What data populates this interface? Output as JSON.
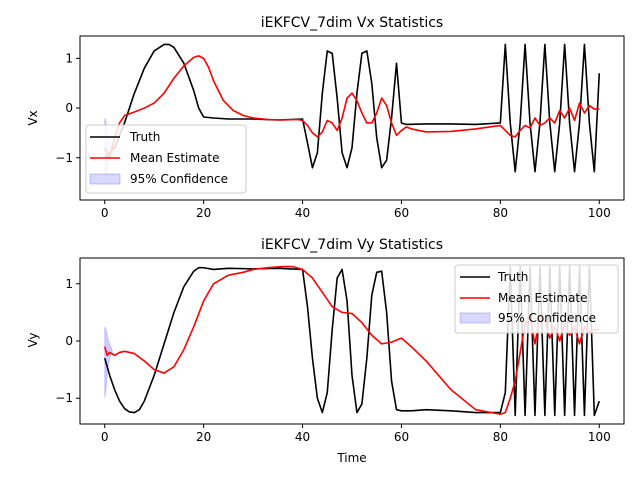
{
  "chart_data": [
    {
      "type": "line",
      "title": "iEKFCV_7dim Vx Statistics",
      "xlabel": "",
      "ylabel": "Vx",
      "xlim": [
        -5,
        105
      ],
      "ylim": [
        -1.85,
        1.45
      ],
      "xticks": [
        0,
        20,
        40,
        60,
        80,
        100
      ],
      "yticks": [
        -1,
        0,
        1
      ],
      "grid": false,
      "legend_position": "lower-left",
      "legend": [
        "Truth",
        "Mean Estimate",
        "95% Confidence"
      ],
      "colors": {
        "truth": "#000000",
        "estimate": "#ff0000",
        "confidence": "#0000ff"
      },
      "series": [
        {
          "name": "Truth",
          "x": [
            0,
            2,
            4,
            6,
            8,
            10,
            12,
            13,
            14,
            16,
            18,
            19,
            20,
            22,
            25,
            30,
            35,
            40,
            41,
            42,
            43,
            44,
            45,
            46,
            47,
            48,
            49,
            50,
            51,
            52,
            53,
            54,
            55,
            56,
            57,
            58,
            59,
            60,
            61,
            65,
            70,
            75,
            80,
            81,
            82,
            83,
            84,
            85,
            86,
            87,
            88,
            89,
            90,
            91,
            92,
            93,
            94,
            95,
            96,
            97,
            98,
            99,
            100
          ],
          "y": [
            -1.0,
            -0.8,
            -0.3,
            0.3,
            0.8,
            1.15,
            1.28,
            1.28,
            1.22,
            0.9,
            0.35,
            0.0,
            -0.18,
            -0.2,
            -0.22,
            -0.22,
            -0.24,
            -0.22,
            -0.7,
            -1.2,
            -0.9,
            0.3,
            1.15,
            1.1,
            0.2,
            -0.9,
            -1.2,
            -0.8,
            0.3,
            1.1,
            1.15,
            0.5,
            -0.6,
            -1.2,
            -1.05,
            -0.2,
            0.9,
            -0.3,
            -0.33,
            -0.32,
            -0.32,
            -0.33,
            -0.3,
            1.28,
            -0.3,
            -1.28,
            -0.3,
            1.28,
            -0.3,
            -1.28,
            -0.3,
            1.28,
            -0.3,
            -1.28,
            -0.3,
            1.28,
            -0.3,
            -1.28,
            -0.3,
            1.28,
            -0.3,
            -1.28,
            0.7
          ]
        },
        {
          "name": "Mean Estimate",
          "x": [
            0,
            1,
            2,
            3,
            4,
            6,
            8,
            10,
            12,
            14,
            16,
            18,
            19,
            20,
            21,
            22,
            24,
            26,
            28,
            30,
            33,
            36,
            39,
            40,
            41,
            42,
            43,
            44,
            45,
            46,
            47,
            48,
            49,
            50,
            51,
            52,
            53,
            54,
            55,
            56,
            57,
            58,
            59,
            60,
            61,
            62,
            65,
            70,
            75,
            80,
            81,
            82,
            83,
            84,
            85,
            86,
            87,
            88,
            89,
            90,
            91,
            92,
            93,
            94,
            95,
            96,
            97,
            98,
            99,
            100
          ],
          "y": [
            -0.8,
            -1.0,
            -0.6,
            -0.3,
            -0.15,
            -0.08,
            0.0,
            0.1,
            0.3,
            0.6,
            0.85,
            1.02,
            1.05,
            1.0,
            0.82,
            0.55,
            0.15,
            -0.05,
            -0.15,
            -0.2,
            -0.23,
            -0.24,
            -0.23,
            -0.25,
            -0.35,
            -0.5,
            -0.58,
            -0.48,
            -0.25,
            -0.3,
            -0.45,
            -0.2,
            0.2,
            0.3,
            0.15,
            -0.1,
            -0.3,
            -0.3,
            -0.1,
            0.2,
            0.05,
            -0.3,
            -0.55,
            -0.45,
            -0.38,
            -0.42,
            -0.48,
            -0.47,
            -0.42,
            -0.35,
            -0.45,
            -0.55,
            -0.58,
            -0.45,
            -0.35,
            -0.4,
            -0.2,
            -0.35,
            -0.3,
            -0.2,
            -0.3,
            -0.05,
            -0.2,
            0.0,
            -0.25,
            0.1,
            -0.1,
            0.05,
            -0.02,
            -0.02
          ]
        }
      ],
      "confidence": {
        "name": "95% Confidence",
        "x": [
          0,
          0.3,
          0.6,
          1.0,
          1.5
        ],
        "lower": [
          -1.3,
          -1.4,
          -1.2,
          -1.0,
          -0.8
        ],
        "upper": [
          -0.2,
          -0.3,
          -0.5,
          -0.7,
          -0.8
        ]
      }
    },
    {
      "type": "line",
      "title": "iEKFCV_7dim Vy Statistics",
      "xlabel": "Time",
      "ylabel": "Vy",
      "xlim": [
        -5,
        105
      ],
      "ylim": [
        -1.45,
        1.45
      ],
      "xticks": [
        0,
        20,
        40,
        60,
        80,
        100
      ],
      "yticks": [
        -1,
        0,
        1
      ],
      "grid": false,
      "legend_position": "upper-right",
      "legend": [
        "Truth",
        "Mean Estimate",
        "95% Confidence"
      ],
      "colors": {
        "truth": "#000000",
        "estimate": "#ff0000",
        "confidence": "#0000ff"
      },
      "series": [
        {
          "name": "Truth",
          "x": [
            0,
            1,
            2,
            3,
            4,
            5,
            6,
            7,
            8,
            10,
            12,
            14,
            16,
            18,
            19,
            20,
            22,
            25,
            30,
            35,
            40,
            41,
            42,
            43,
            44,
            45,
            46,
            47,
            48,
            49,
            50,
            51,
            52,
            53,
            54,
            55,
            56,
            57,
            58,
            59,
            60,
            62,
            65,
            70,
            75,
            80,
            81,
            82,
            83,
            84,
            85,
            86,
            87,
            88,
            89,
            90,
            91,
            92,
            93,
            94,
            95,
            96,
            97,
            98,
            99,
            100
          ],
          "y": [
            -0.3,
            -0.6,
            -0.85,
            -1.05,
            -1.18,
            -1.24,
            -1.25,
            -1.2,
            -1.05,
            -0.6,
            -0.05,
            0.5,
            0.95,
            1.22,
            1.28,
            1.28,
            1.25,
            1.27,
            1.26,
            1.27,
            1.25,
            0.6,
            -0.3,
            -1.0,
            -1.25,
            -0.9,
            0.2,
            1.1,
            1.25,
            0.7,
            -0.6,
            -1.25,
            -1.1,
            -0.3,
            0.8,
            1.2,
            1.22,
            0.5,
            -0.7,
            -1.2,
            -1.22,
            -1.22,
            -1.2,
            -1.22,
            -1.25,
            -1.25,
            -0.9,
            1.3,
            -1.3,
            1.3,
            -1.3,
            1.3,
            -1.3,
            1.3,
            -1.3,
            1.3,
            -1.3,
            1.3,
            -1.3,
            1.3,
            -1.3,
            1.3,
            -1.3,
            1.3,
            -1.3,
            -1.05
          ]
        },
        {
          "name": "Mean Estimate",
          "x": [
            0,
            0.5,
            1,
            2,
            3,
            4,
            6,
            8,
            10,
            12,
            14,
            16,
            18,
            20,
            22,
            25,
            28,
            30,
            33,
            36,
            38,
            40,
            42,
            44,
            46,
            48,
            50,
            52,
            54,
            56,
            58,
            60,
            62,
            65,
            70,
            75,
            80,
            81,
            82,
            83,
            84,
            85,
            86,
            87,
            88,
            89,
            90,
            91,
            92,
            93,
            94,
            95,
            96,
            97,
            98,
            99,
            100
          ],
          "y": [
            -0.1,
            -0.25,
            -0.2,
            -0.25,
            -0.2,
            -0.18,
            -0.22,
            -0.35,
            -0.5,
            -0.56,
            -0.45,
            -0.15,
            0.25,
            0.7,
            1.0,
            1.15,
            1.2,
            1.25,
            1.28,
            1.3,
            1.3,
            1.25,
            1.1,
            0.85,
            0.6,
            0.5,
            0.48,
            0.32,
            0.1,
            -0.05,
            -0.02,
            0.05,
            -0.1,
            -0.35,
            -0.85,
            -1.2,
            -1.28,
            -1.25,
            -1.0,
            -0.7,
            -0.2,
            0.3,
            0.4,
            -0.05,
            0.45,
            0.35,
            0.05,
            0.25,
            0.0,
            0.3,
            0.1,
            0.25,
            -0.05,
            0.25,
            0.15,
            0.2,
            0.2
          ]
        }
      ],
      "confidence": {
        "name": "95% Confidence",
        "x": [
          0,
          0.3,
          0.6,
          1.0,
          1.5
        ],
        "lower": [
          -1.0,
          -0.8,
          -0.5,
          -0.3,
          -0.2
        ],
        "upper": [
          0.25,
          0.2,
          0.05,
          -0.05,
          -0.15
        ]
      }
    }
  ]
}
